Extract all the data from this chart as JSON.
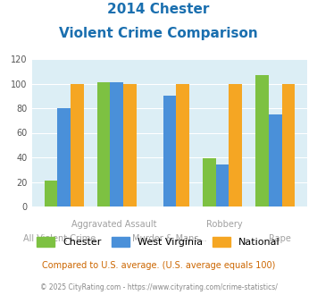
{
  "title_line1": "2014 Chester",
  "title_line2": "Violent Crime Comparison",
  "categories": [
    "All Violent Crime",
    "Aggravated Assault",
    "Murder & Mans...",
    "Robbery",
    "Rape"
  ],
  "chester": [
    21,
    101,
    0,
    39,
    107
  ],
  "west_virginia": [
    80,
    101,
    90,
    34,
    75
  ],
  "national": [
    100,
    100,
    100,
    100,
    100
  ],
  "chester_color": "#7dc142",
  "wv_color": "#4a90d9",
  "national_color": "#f5a623",
  "ylim": [
    0,
    120
  ],
  "yticks": [
    0,
    20,
    40,
    60,
    80,
    100,
    120
  ],
  "bg_color": "#dceef5",
  "title_color": "#1a6faf",
  "label_row1": [
    "",
    "Aggravated Assault",
    "",
    "Robbery",
    ""
  ],
  "label_row2": [
    "All Violent Crime",
    "",
    "Murder & Mans...",
    "",
    "Rape"
  ],
  "xlabel_color": "#a0a0a0",
  "legend_labels": [
    "Chester",
    "West Virginia",
    "National"
  ],
  "footer_text": "Compared to U.S. average. (U.S. average equals 100)",
  "credit_text": "© 2025 CityRating.com - https://www.cityrating.com/crime-statistics/",
  "footer_color": "#cc6600",
  "credit_color": "#888888"
}
